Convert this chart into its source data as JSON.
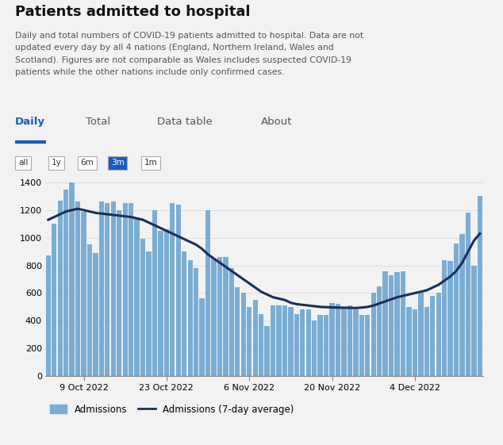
{
  "title": "Patients admitted to hospital",
  "subtitle_lines": [
    "Daily and total numbers of COVID-19 patients admitted to hospital. Data are not",
    "updated every day by all 4 nations (England, Northern Ireland, Wales and",
    "Scotland). Figures are not comparable as Wales includes suspected COVID-19",
    "patients while the other nations include only confirmed cases."
  ],
  "tab_labels": [
    "Daily",
    "Total",
    "Data table",
    "About"
  ],
  "active_tab": "Daily",
  "period_buttons": [
    "all",
    "1y",
    "6m",
    "3m",
    "1m"
  ],
  "active_period": "3m",
  "bar_color": "#7aadd4",
  "line_color": "#1a2f5a",
  "background_color": "#f2f2f2",
  "ylim": [
    0,
    1400
  ],
  "yticks": [
    0,
    200,
    400,
    600,
    800,
    1000,
    1200,
    1400
  ],
  "xtick_labels": [
    "9 Oct 2022",
    "23 Oct 2022",
    "6 Nov 2022",
    "20 Nov 2022",
    "4 Dec 2022",
    ""
  ],
  "xtick_positions": [
    6,
    20,
    34,
    48,
    62,
    76
  ],
  "daily_admissions": [
    870,
    1100,
    1270,
    1350,
    1420,
    1260,
    1190,
    950,
    890,
    1260,
    1250,
    1260,
    1200,
    1250,
    1250,
    1150,
    990,
    900,
    1200,
    1050,
    1060,
    1250,
    1240,
    900,
    840,
    780,
    560,
    1200,
    850,
    860,
    860,
    780,
    640,
    600,
    500,
    550,
    450,
    360,
    510,
    510,
    510,
    500,
    450,
    480,
    480,
    400,
    440,
    440,
    530,
    520,
    500,
    510,
    480,
    440,
    440,
    600,
    650,
    760,
    730,
    750,
    760,
    500,
    480,
    600,
    500,
    580,
    600,
    840,
    830,
    960,
    1030,
    1180,
    800,
    1300
  ],
  "seven_day_avg": [
    1130,
    1150,
    1170,
    1190,
    1200,
    1210,
    1200,
    1190,
    1180,
    1175,
    1170,
    1165,
    1160,
    1155,
    1150,
    1140,
    1130,
    1110,
    1090,
    1070,
    1050,
    1030,
    1010,
    990,
    970,
    950,
    920,
    880,
    850,
    820,
    790,
    760,
    730,
    700,
    670,
    640,
    610,
    590,
    570,
    560,
    550,
    530,
    520,
    515,
    510,
    505,
    500,
    498,
    496,
    495,
    494,
    493,
    492,
    495,
    500,
    510,
    525,
    540,
    555,
    570,
    580,
    590,
    600,
    610,
    620,
    640,
    660,
    690,
    720,
    760,
    820,
    900,
    980,
    1030
  ],
  "legend_bar_label": "Admissions",
  "legend_line_label": "Admissions (7-day average)"
}
